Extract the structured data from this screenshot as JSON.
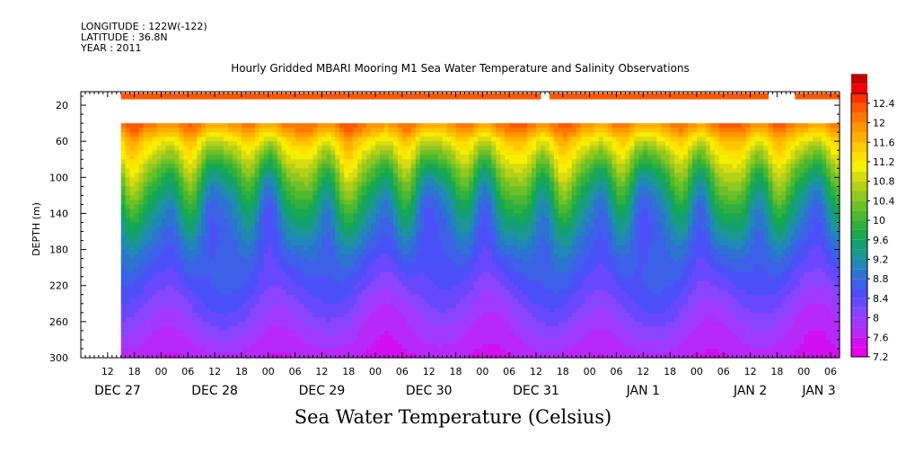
{
  "header": {
    "longitude": "LONGITUDE : 122W(-122)",
    "latitude": "LATITUDE : 36.8N",
    "year": "YEAR : 2011"
  },
  "chart_data": {
    "type": "heatmap",
    "title": "Hourly Gridded MBARI Mooring M1 Sea Water Temperature and Salinity Observations",
    "bottom_title": "Sea Water Temperature (Celsius)",
    "ylabel": "DEPTH (m)",
    "y_reversed": true,
    "ylim": [
      5,
      300
    ],
    "y_ticks": [
      20,
      60,
      100,
      140,
      180,
      220,
      260,
      300
    ],
    "x_start": "2011-12-27 06:00",
    "x_end": "2012-01-03 08:00",
    "x_hour_ticks": [
      "12",
      "18",
      "00",
      "06",
      "12",
      "18",
      "00",
      "06",
      "12",
      "18",
      "00",
      "06",
      "12",
      "18",
      "00",
      "06",
      "12",
      "18",
      "00",
      "06",
      "12",
      "18",
      "00",
      "06",
      "12",
      "18",
      "00",
      "06",
      "12",
      "18",
      "00",
      "06"
    ],
    "x_day_labels": [
      "DEC 27",
      "DEC 28",
      "DEC 29",
      "DEC 30",
      "DEC 31",
      "JAN  1",
      "JAN  2",
      "JAN  3"
    ],
    "data_start": "2011-12-27 15:00",
    "colorbar": {
      "min": 7.2,
      "max": 12.6,
      "step": 0.2,
      "labels": [
        "12.4",
        "12",
        "11.6",
        "11.2",
        "10.8",
        "10.4",
        "10",
        "9.6",
        "9.2",
        "8.8",
        "8.4",
        "8",
        "7.6",
        "7.2"
      ],
      "colors": [
        "#e800e8",
        "#d010f0",
        "#b828f8",
        "#a038ff",
        "#8844ff",
        "#6848ff",
        "#4c50f8",
        "#3c60e8",
        "#2c74d0",
        "#2088b8",
        "#1c9890",
        "#14a070",
        "#18a850",
        "#30b040",
        "#4cb830",
        "#6cc028",
        "#90c820",
        "#b4d018",
        "#d8dc10",
        "#f4f000",
        "#ffe000",
        "#ffc800",
        "#ffb000",
        "#ff9800",
        "#ff7800",
        "#ff5800",
        "#ff3000",
        "#f00000",
        "#c00000"
      ]
    },
    "profile_depths": [
      40,
      45,
      50,
      55,
      60,
      70,
      80,
      90,
      100,
      110,
      120,
      130,
      140,
      150,
      160,
      170,
      180,
      190,
      200,
      210,
      220,
      230,
      240,
      250,
      260,
      270,
      280,
      290,
      300
    ],
    "profile_temps": [
      12.05,
      11.9,
      11.7,
      11.45,
      11.2,
      10.9,
      10.6,
      10.3,
      10.05,
      9.8,
      9.6,
      9.4,
      9.25,
      9.1,
      8.98,
      8.86,
      8.75,
      8.65,
      8.56,
      8.47,
      8.38,
      8.28,
      8.18,
      8.08,
      7.98,
      7.88,
      7.8,
      7.72,
      7.62
    ],
    "surface_depth": 10,
    "surface_temp": 12.3,
    "surface_gaps": [
      [
        "2011-12-31 13:00",
        "2011-12-31 15:00"
      ],
      [
        "2012-01-02 16:00",
        "2012-01-02 22:00"
      ]
    ]
  }
}
